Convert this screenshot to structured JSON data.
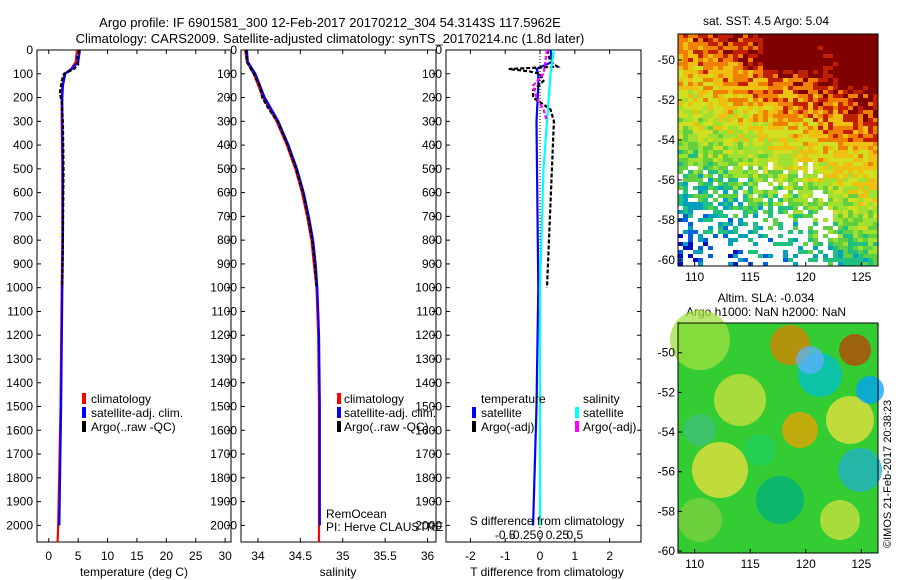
{
  "header": {
    "line1": "Argo profile: IF 6901581_300 12-Feb-2017 20170212_304 54.3143S 117.5962E",
    "line2": "Climatology: CARS2009. Satellite-adjusted climatology: synTS_20170214.nc (1.8d later)"
  },
  "colors": {
    "climatology": "#ff0000",
    "satellite": "#0000ff",
    "argo": "#000000",
    "salinity_satellite": "#00ffff",
    "salinity_argo": "#ff00ff"
  },
  "depth_ticks": [
    "0",
    "100",
    "200",
    "300",
    "400",
    "500",
    "600",
    "700",
    "800",
    "900",
    "1000",
    "1100",
    "1200",
    "1300",
    "1400",
    "1500",
    "1600",
    "1700",
    "1800",
    "1900",
    "2000"
  ],
  "chart_data": [
    {
      "type": "line",
      "id": "temperature",
      "xlabel": "temperature (deg C)",
      "ylabel": "",
      "xlim": [
        -2,
        31
      ],
      "ylim": [
        2070,
        0
      ],
      "xticks": [
        "0",
        "5",
        "10",
        "15",
        "20",
        "25",
        "30"
      ],
      "legend": [
        "climatology",
        "satellite-adj. clim.",
        "Argo(..raw -QC)"
      ],
      "series": [
        {
          "name": "climatology",
          "depth": [
            0,
            50,
            80,
            100,
            150,
            200,
            300,
            500,
            800,
            1000,
            1500,
            2000,
            2070
          ],
          "values": [
            4.8,
            4.6,
            3.8,
            2.7,
            2.3,
            2.2,
            2.2,
            2.3,
            2.3,
            2.2,
            2.0,
            1.6,
            1.5
          ]
        },
        {
          "name": "satellite-adj. clim.",
          "depth": [
            0,
            50,
            80,
            100,
            150,
            200,
            300,
            500,
            800,
            1000,
            1500,
            2000
          ],
          "values": [
            5.3,
            5.0,
            3.9,
            2.8,
            2.4,
            2.3,
            2.3,
            2.4,
            2.4,
            2.3,
            2.1,
            1.8
          ]
        },
        {
          "name": "Argo(..raw -QC)",
          "depth": [
            0,
            30,
            60,
            80,
            100,
            130,
            180,
            220,
            300,
            500,
            800,
            1000
          ],
          "values": [
            5.2,
            4.8,
            5.0,
            4.3,
            2.6,
            2.2,
            1.9,
            2.2,
            2.4,
            2.5,
            2.4,
            2.3
          ]
        }
      ]
    },
    {
      "type": "line",
      "id": "salinity",
      "xlabel": "salinity",
      "ylabel": "",
      "xlim": [
        33.8,
        36.1
      ],
      "ylim": [
        2070,
        0
      ],
      "xticks": [
        "34",
        "34.5",
        "35",
        "35.5",
        "36"
      ],
      "legend": [
        "climatology",
        "satellite-adj. clim.",
        "Argo(..raw -QC)"
      ],
      "series": [
        {
          "name": "climatology",
          "depth": [
            0,
            50,
            100,
            200,
            300,
            400,
            500,
            600,
            700,
            800,
            900,
            1000,
            1200,
            1500,
            2000,
            2070
          ],
          "values": [
            33.85,
            33.87,
            33.95,
            34.06,
            34.22,
            34.34,
            34.44,
            34.52,
            34.58,
            34.63,
            34.66,
            34.69,
            34.71,
            34.72,
            34.72,
            34.72
          ]
        },
        {
          "name": "satellite-adj. clim.",
          "depth": [
            0,
            50,
            100,
            200,
            300,
            400,
            500,
            600,
            700,
            800,
            900,
            1000,
            1200,
            1500,
            2000
          ],
          "values": [
            33.87,
            33.88,
            33.97,
            34.08,
            34.24,
            34.36,
            34.46,
            34.54,
            34.6,
            34.65,
            34.68,
            34.7,
            34.72,
            34.73,
            34.73
          ]
        },
        {
          "name": "Argo(..raw -QC)",
          "depth": [
            0,
            50,
            100,
            150,
            200,
            250,
            300,
            400,
            500,
            600,
            700,
            800,
            900,
            1000
          ],
          "values": [
            33.86,
            33.87,
            33.95,
            34.02,
            34.05,
            34.13,
            34.23,
            34.35,
            34.45,
            34.53,
            34.59,
            34.64,
            34.67,
            34.69
          ]
        }
      ],
      "annotation": {
        "line1": "RemOcean",
        "line2": "PI: Herve CLAUSTRE"
      }
    },
    {
      "type": "line",
      "id": "difference",
      "xlabel": "T difference from climatology",
      "top_label": "S difference from climatology",
      "xlim": [
        -2.7,
        2.9
      ],
      "ylim": [
        2070,
        0
      ],
      "xticks": [
        "-2",
        "-1",
        "0",
        "1",
        "2"
      ],
      "sticks": [
        "-0.5",
        "-0.25",
        "0",
        "0.25",
        "0.5"
      ],
      "legend_headers": {
        "temperature": "temperature",
        "salinity": "salinity"
      },
      "legend": [
        "satellite",
        "Argo(-adj)",
        "satellite",
        "Argo(-adj)"
      ],
      "series": [
        {
          "name": "temperature satellite",
          "depth": [
            0,
            50,
            80,
            100,
            150,
            300,
            1000,
            1500,
            2000
          ],
          "values": [
            0.3,
            0.35,
            -0.1,
            -0.05,
            -0.05,
            -0.1,
            -0.05,
            -0.1,
            -0.2
          ]
        },
        {
          "name": "temperature Argo(-adj)",
          "depth": [
            0,
            50,
            70,
            80,
            90,
            100,
            130,
            170,
            200,
            250,
            300,
            1000
          ],
          "values": [
            0.2,
            0.3,
            0.5,
            -0.9,
            -0.3,
            0.0,
            0.1,
            -0.2,
            -0.2,
            0.3,
            0.4,
            0.2
          ]
        },
        {
          "name": "salinity satellite",
          "depth": [
            0,
            100,
            300,
            500,
            1000,
            2000
          ],
          "values": [
            0.2,
            0.15,
            0.1,
            0.05,
            0.0,
            0.0
          ]
        },
        {
          "name": "salinity Argo(-adj)",
          "depth": [
            0,
            100,
            150,
            200,
            250,
            300
          ],
          "values": [
            0.1,
            0.05,
            -0.1,
            -0.05,
            0.05,
            0.1
          ]
        }
      ]
    },
    {
      "type": "heatmap",
      "id": "sst_map",
      "title": "sat. SST: 4.5 Argo: 5.04",
      "xlim": [
        108.5,
        126.5
      ],
      "ylim": [
        -60.3,
        -48.7
      ],
      "xticks": [
        "110",
        "115",
        "120",
        "125"
      ],
      "yticks": [
        "-50",
        "-52",
        "-54",
        "-56",
        "-58",
        "-60"
      ]
    },
    {
      "type": "heatmap",
      "id": "sla_map",
      "title_line1": "Altim. SLA: -0.034",
      "title_line2": "Argo h1000: NaN h2000: NaN",
      "xlim": [
        108.5,
        126.5
      ],
      "ylim": [
        -60.1,
        -48.5
      ],
      "xticks": [
        "110",
        "115",
        "120",
        "125"
      ],
      "yticks": [
        "-50",
        "-52",
        "-54",
        "-56",
        "-58",
        "-60"
      ]
    }
  ],
  "footer": {
    "stamp": "©IMOS 21-Feb-2017 20:38:23"
  }
}
